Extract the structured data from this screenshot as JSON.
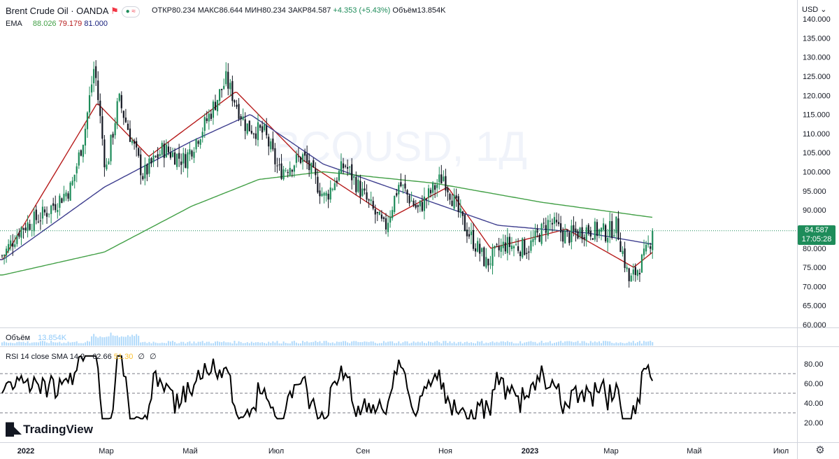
{
  "header": {
    "symbol": "Brent Crude Oil · OANDA",
    "ohlc": [
      {
        "label": "ОТКР",
        "value": "80.234"
      },
      {
        "label": "МАКС",
        "value": "86.644"
      },
      {
        "label": "МИН",
        "value": "80.234"
      },
      {
        "label": "ЗАКР",
        "value": "84.587"
      }
    ],
    "change": "+4.353 (+5.43%)",
    "volume_label": "Объём",
    "volume_value": "13.854K",
    "currency": "USD",
    "watermark": "BCOUSD, 1Д"
  },
  "ema": {
    "label": "EMA",
    "values": [
      "88.026",
      "79.179",
      "81.000"
    ],
    "colors": [
      "#43a047",
      "#b71c1c",
      "#1a237e"
    ]
  },
  "volume_pane": {
    "label": "Объём",
    "value": "13.854K"
  },
  "rsi_pane": {
    "label": "RSI 14 close SMA 14 2",
    "value1": "62.66",
    "value2": "51.30",
    "extra1": "∅",
    "extra2": "∅"
  },
  "price_label": {
    "value": "84.587",
    "countdown": "17:05:28"
  },
  "brand": "TradingView",
  "colors": {
    "up": "#1e8c5a",
    "down": "#131722",
    "ema_fast": "#b71c1c",
    "ema_mid": "#3f3f8f",
    "ema_slow": "#43a047",
    "volume": "#90caf9",
    "rsi_line": "#000000"
  },
  "chart_data": {
    "type": "candlestick",
    "title": "Brent Crude Oil · OANDA",
    "ylim": [
      60,
      140
    ],
    "y_ticks": [
      "140.000",
      "135.000",
      "130.000",
      "125.000",
      "120.000",
      "115.000",
      "110.000",
      "105.000",
      "100.000",
      "95.000",
      "90.000",
      "85.000",
      "80.000",
      "75.000",
      "70.000",
      "65.000",
      "60.000"
    ],
    "x_ticks": [
      "2022",
      "Мар",
      "Май",
      "Июл",
      "Сен",
      "Ноя",
      "2023",
      "Мар",
      "Май",
      "Июл"
    ],
    "price_path": [
      [
        "2022-01-03",
        78
      ],
      [
        "2022-01-15",
        85
      ],
      [
        "2022-02-01",
        89
      ],
      [
        "2022-02-20",
        96
      ],
      [
        "2022-03-01",
        110
      ],
      [
        "2022-03-08",
        128
      ],
      [
        "2022-03-16",
        100
      ],
      [
        "2022-03-25",
        119
      ],
      [
        "2022-04-11",
        99
      ],
      [
        "2022-04-25",
        106
      ],
      [
        "2022-05-10",
        103
      ],
      [
        "2022-05-25",
        113
      ],
      [
        "2022-06-08",
        124
      ],
      [
        "2022-06-22",
        112
      ],
      [
        "2022-07-05",
        110
      ],
      [
        "2022-07-15",
        100
      ],
      [
        "2022-08-01",
        104
      ],
      [
        "2022-08-16",
        93
      ],
      [
        "2022-08-30",
        102
      ],
      [
        "2022-09-15",
        92
      ],
      [
        "2022-09-27",
        85
      ],
      [
        "2022-10-07",
        97
      ],
      [
        "2022-10-20",
        90
      ],
      [
        "2022-11-07",
        99
      ],
      [
        "2022-11-20",
        87
      ],
      [
        "2022-12-07",
        76
      ],
      [
        "2022-12-20",
        81
      ],
      [
        "2023-01-05",
        80
      ],
      [
        "2023-01-20",
        87
      ],
      [
        "2023-02-01",
        83
      ],
      [
        "2023-02-15",
        85
      ],
      [
        "2023-03-01",
        84
      ],
      [
        "2023-03-08",
        86
      ],
      [
        "2023-03-17",
        71
      ],
      [
        "2023-03-28",
        78
      ],
      [
        "2023-04-03",
        84.587
      ]
    ],
    "series": [
      {
        "name": "EMA",
        "color": "#b71c1c",
        "values": [
          [
            "2022-01-03",
            77
          ],
          [
            "2022-03-10",
            118
          ],
          [
            "2022-04-15",
            104
          ],
          [
            "2022-06-15",
            121
          ],
          [
            "2022-08-01",
            103
          ],
          [
            "2022-10-01",
            88
          ],
          [
            "2022-11-10",
            96
          ],
          [
            "2022-12-10",
            80
          ],
          [
            "2023-02-01",
            85
          ],
          [
            "2023-03-20",
            75
          ],
          [
            "2023-04-03",
            79.179
          ]
        ]
      },
      {
        "name": "EMA",
        "color": "#3f3f8f",
        "values": [
          [
            "2022-01-03",
            77
          ],
          [
            "2022-03-15",
            96
          ],
          [
            "2022-05-15",
            108
          ],
          [
            "2022-06-25",
            115
          ],
          [
            "2022-08-15",
            102
          ],
          [
            "2022-10-15",
            94
          ],
          [
            "2022-12-15",
            86
          ],
          [
            "2023-02-15",
            84
          ],
          [
            "2023-04-03",
            81.0
          ]
        ]
      },
      {
        "name": "EMA",
        "color": "#43a047",
        "values": [
          [
            "2022-01-03",
            73
          ],
          [
            "2022-03-15",
            79
          ],
          [
            "2022-05-15",
            91
          ],
          [
            "2022-07-01",
            98
          ],
          [
            "2022-08-15",
            100
          ],
          [
            "2022-11-01",
            97
          ],
          [
            "2023-01-15",
            92
          ],
          [
            "2023-04-03",
            88.026
          ]
        ]
      }
    ],
    "last_price": 84.587,
    "rsi": {
      "ylim": [
        10,
        95
      ],
      "y_ticks": [
        "80.00",
        "60.00",
        "40.00",
        "20.00"
      ],
      "levels": [
        70,
        50,
        30
      ],
      "last": 62.66
    }
  }
}
